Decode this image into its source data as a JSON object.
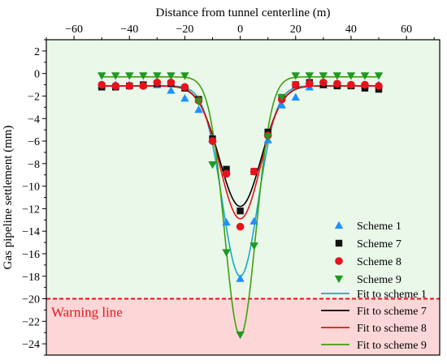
{
  "chart_data": {
    "type": "scatter",
    "xlabel": "Distance from tunnel centerline (m)",
    "ylabel": "Gas pipeline settlement (mm)",
    "xlim": [
      -70,
      72
    ],
    "ylim": [
      -25,
      3
    ],
    "x_ticks": [
      -60,
      -40,
      -20,
      0,
      20,
      40,
      60
    ],
    "y_ticks": [
      2,
      0,
      -2,
      -4,
      -6,
      -8,
      -10,
      -12,
      -14,
      -16,
      -18,
      -20,
      -22,
      -24
    ],
    "x_axis_position": "top",
    "grid": false,
    "legend_position": "bottom-right",
    "series": [
      {
        "name": "Scheme 1",
        "marker": "triangle-up",
        "color": "#1e90ff",
        "points": [
          [
            -50,
            -1.0
          ],
          [
            -45,
            -1.0
          ],
          [
            -40,
            -1.0
          ],
          [
            -35,
            -1.0
          ],
          [
            -30,
            -1.0
          ],
          [
            -25,
            -1.5
          ],
          [
            -20,
            -2.2
          ],
          [
            -15,
            -3.2
          ],
          [
            -10,
            -5.8
          ],
          [
            -5,
            -13.2
          ],
          [
            0,
            -18.2
          ],
          [
            5,
            -13.1
          ],
          [
            10,
            -5.9
          ],
          [
            15,
            -2.8
          ],
          [
            20,
            -2.1
          ],
          [
            25,
            -1.2
          ],
          [
            30,
            -1.0
          ],
          [
            35,
            -1.0
          ],
          [
            40,
            -1.0
          ],
          [
            45,
            -1.0
          ],
          [
            50,
            -1.0
          ]
        ]
      },
      {
        "name": "Scheme 7",
        "marker": "square",
        "color": "#111111",
        "points": [
          [
            -50,
            -1.2
          ],
          [
            -45,
            -1.2
          ],
          [
            -40,
            -1.1
          ],
          [
            -35,
            -1.0
          ],
          [
            -30,
            -0.9
          ],
          [
            -25,
            -0.9
          ],
          [
            -20,
            -1.3
          ],
          [
            -15,
            -2.3
          ],
          [
            -10,
            -5.8
          ],
          [
            -5,
            -8.5
          ],
          [
            0,
            -12.2
          ],
          [
            5,
            -8.7
          ],
          [
            10,
            -5.2
          ],
          [
            15,
            -2.2
          ],
          [
            20,
            -1.0
          ],
          [
            25,
            -0.8
          ],
          [
            30,
            -1.0
          ],
          [
            35,
            -1.1
          ],
          [
            40,
            -1.1
          ],
          [
            45,
            -1.3
          ],
          [
            50,
            -1.4
          ]
        ]
      },
      {
        "name": "Scheme 8",
        "marker": "circle",
        "color": "#e8121b",
        "points": [
          [
            -50,
            -1.0
          ],
          [
            -45,
            -1.1
          ],
          [
            -40,
            -1.1
          ],
          [
            -35,
            -1.1
          ],
          [
            -30,
            -0.8
          ],
          [
            -25,
            -0.8
          ],
          [
            -20,
            -1.2
          ],
          [
            -15,
            -2.4
          ],
          [
            -10,
            -6.0
          ],
          [
            -5,
            -8.9
          ],
          [
            0,
            -13.6
          ],
          [
            5,
            -8.7
          ],
          [
            10,
            -5.5
          ],
          [
            15,
            -2.3
          ],
          [
            20,
            -1.0
          ],
          [
            25,
            -0.9
          ],
          [
            30,
            -0.8
          ],
          [
            35,
            -0.9
          ],
          [
            40,
            -1.0
          ],
          [
            45,
            -1.0
          ],
          [
            50,
            -1.1
          ]
        ]
      },
      {
        "name": "Scheme 9",
        "marker": "triangle-down",
        "color": "#1f9a1f",
        "points": [
          [
            -50,
            -0.2
          ],
          [
            -45,
            -0.2
          ],
          [
            -40,
            -0.2
          ],
          [
            -35,
            -0.2
          ],
          [
            -30,
            -0.2
          ],
          [
            -25,
            -0.2
          ],
          [
            -20,
            -0.2
          ],
          [
            -15,
            -2.5
          ],
          [
            -10,
            -8.1
          ],
          [
            -5,
            -15.9
          ],
          [
            0,
            -23.2
          ],
          [
            5,
            -15.3
          ],
          [
            10,
            -5.6
          ],
          [
            15,
            -2.1
          ],
          [
            20,
            -0.2
          ],
          [
            25,
            -0.2
          ],
          [
            30,
            -0.2
          ],
          [
            35,
            -0.2
          ],
          [
            40,
            -0.2
          ],
          [
            45,
            -0.2
          ],
          [
            50,
            -0.2
          ]
        ]
      }
    ],
    "fits": [
      {
        "name": "Fit to scheme 1",
        "color": "#17a9c9",
        "baseline": -1.1,
        "peak": -18.0,
        "width": 6.5
      },
      {
        "name": "Fit to scheme 7",
        "color": "#000000",
        "baseline": -1.1,
        "peak": -11.8,
        "width": 7.5
      },
      {
        "name": "Fit to scheme 8",
        "color": "#e8121b",
        "baseline": -1.1,
        "peak": -12.9,
        "width": 7.3
      },
      {
        "name": "Fit to scheme 9",
        "color": "#3f9f0f",
        "baseline": -0.3,
        "peak": -23.3,
        "width": 5.6
      }
    ],
    "warning_line": {
      "label": "Warning line",
      "y": -20,
      "color": "#e8121b"
    },
    "regions": {
      "safe_color": "#eaf8ea",
      "danger_color": "#fdd7d7"
    }
  }
}
